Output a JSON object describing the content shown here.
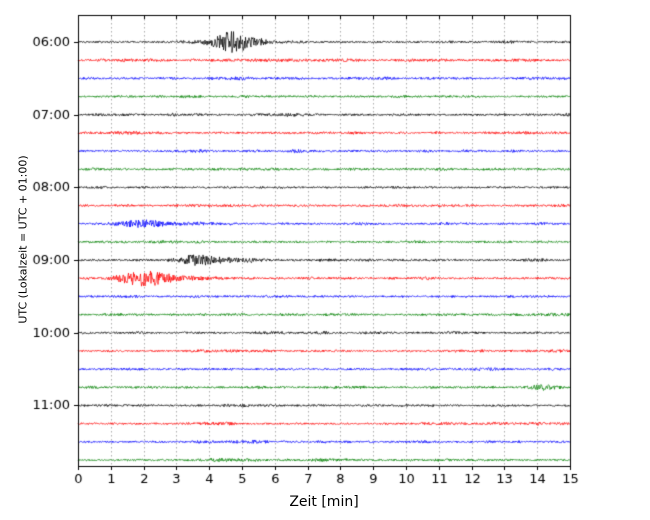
{
  "chart_data": {
    "type": "line",
    "subtype": "seismogram-drumplot",
    "title": "",
    "xlabel": "Zeit  [min]",
    "ylabel": "UTC (Lokalzeit = UTC + 01:00)",
    "x_range": [
      0,
      15
    ],
    "x_ticks": [
      "0",
      "1",
      "2",
      "3",
      "4",
      "5",
      "6",
      "7",
      "8",
      "9",
      "10",
      "11",
      "12",
      "13",
      "14",
      "15"
    ],
    "grid": "vertical-dotted",
    "legend": "none",
    "hour_labels": [
      "06:00",
      "07:00",
      "08:00",
      "09:00",
      "10:00",
      "11:00"
    ],
    "trace_colors": {
      "black": "#000000",
      "red": "#ff0000",
      "blue": "#0000ff",
      "green": "#008000"
    },
    "baseline_noise_amp": 1.0,
    "traces": [
      {
        "time": "06:00",
        "label": "06:00",
        "color": "black",
        "events": [
          {
            "t": 4.7,
            "sigma": 0.38,
            "amp": 7.5
          },
          {
            "t": 4.8,
            "sigma": 0.85,
            "amp": 2.2
          }
        ]
      },
      {
        "time": "06:15",
        "label": "",
        "color": "red",
        "events": []
      },
      {
        "time": "06:30",
        "label": "",
        "color": "blue",
        "events": []
      },
      {
        "time": "06:45",
        "label": "",
        "color": "green",
        "events": []
      },
      {
        "time": "07:00",
        "label": "07:00",
        "color": "black",
        "events": []
      },
      {
        "time": "07:15",
        "label": "",
        "color": "red",
        "events": []
      },
      {
        "time": "07:30",
        "label": "",
        "color": "blue",
        "events": []
      },
      {
        "time": "07:45",
        "label": "",
        "color": "green",
        "events": []
      },
      {
        "time": "08:00",
        "label": "08:00",
        "color": "black",
        "events": []
      },
      {
        "time": "08:15",
        "label": "",
        "color": "red",
        "events": []
      },
      {
        "time": "08:30",
        "label": "",
        "color": "blue",
        "events": [
          {
            "t": 1.9,
            "sigma": 0.38,
            "amp": 2.8
          },
          {
            "t": 2.6,
            "sigma": 0.7,
            "amp": 1.0
          }
        ]
      },
      {
        "time": "08:45",
        "label": "",
        "color": "green",
        "events": []
      },
      {
        "time": "09:00",
        "label": "09:00",
        "color": "black",
        "events": [
          {
            "t": 3.6,
            "sigma": 0.4,
            "amp": 4.2
          },
          {
            "t": 4.4,
            "sigma": 0.8,
            "amp": 1.4
          }
        ]
      },
      {
        "time": "09:15",
        "label": "",
        "color": "red",
        "events": [
          {
            "t": 2.0,
            "sigma": 0.5,
            "amp": 6.0
          },
          {
            "t": 2.9,
            "sigma": 1.0,
            "amp": 1.8
          }
        ]
      },
      {
        "time": "09:30",
        "label": "",
        "color": "blue",
        "events": []
      },
      {
        "time": "09:45",
        "label": "",
        "color": "green",
        "events": []
      },
      {
        "time": "10:00",
        "label": "10:00",
        "color": "black",
        "events": []
      },
      {
        "time": "10:15",
        "label": "",
        "color": "red",
        "events": []
      },
      {
        "time": "10:30",
        "label": "",
        "color": "blue",
        "events": []
      },
      {
        "time": "10:45",
        "label": "",
        "color": "green",
        "events": [
          {
            "t": 14.2,
            "sigma": 0.3,
            "amp": 2.2
          }
        ]
      },
      {
        "time": "11:00",
        "label": "11:00",
        "color": "black",
        "events": []
      },
      {
        "time": "11:15",
        "label": "",
        "color": "red",
        "events": []
      },
      {
        "time": "11:30",
        "label": "",
        "color": "blue",
        "events": []
      },
      {
        "time": "11:45",
        "label": "",
        "color": "green",
        "events": []
      }
    ]
  }
}
